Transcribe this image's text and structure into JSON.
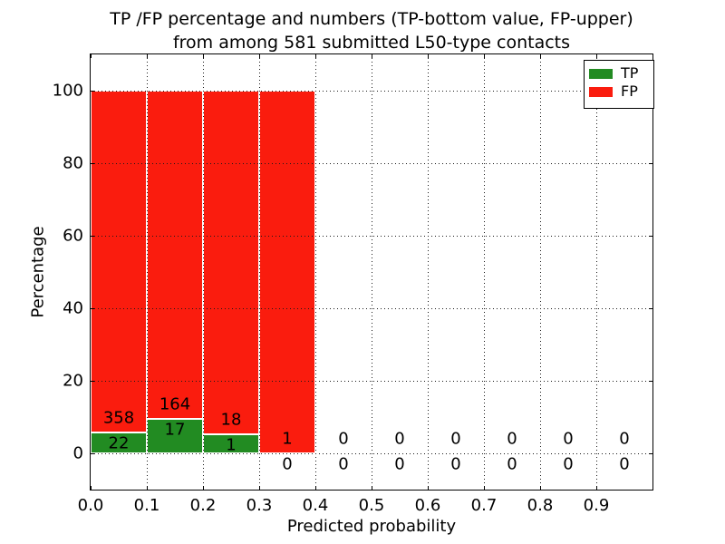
{
  "title": {
    "line1": "TP /FP percentage and numbers (TP-bottom value, FP-upper)",
    "line2": "from among 581 submitted L50-type contacts"
  },
  "chart_data": {
    "type": "bar",
    "stacked": true,
    "title": "TP /FP percentage and numbers (TP-bottom value, FP-upper) from among 581 submitted L50-type contacts",
    "xlabel": "Predicted probability",
    "ylabel": "Percentage",
    "xlim": [
      0.0,
      1.0
    ],
    "ylim": [
      -10,
      110
    ],
    "grid": "dotted",
    "xtick_values": [
      0.0,
      0.1,
      0.2,
      0.3,
      0.4,
      0.5,
      0.6,
      0.7,
      0.8,
      0.9
    ],
    "xtick_labels": [
      "0.0",
      "0.1",
      "0.2",
      "0.3",
      "0.4",
      "0.5",
      "0.6",
      "0.7",
      "0.8",
      "0.9"
    ],
    "ytick_values": [
      0,
      20,
      40,
      60,
      80,
      100
    ],
    "ytick_labels": [
      "0",
      "20",
      "40",
      "60",
      "80",
      "100"
    ],
    "legend": {
      "position": "upper-right",
      "entries": [
        {
          "label": "TP",
          "color": "#228b22"
        },
        {
          "label": "FP",
          "color": "#fa1c0e"
        }
      ]
    },
    "bins": [
      {
        "range": [
          0.0,
          0.1
        ],
        "tp": 22,
        "fp": 358
      },
      {
        "range": [
          0.1,
          0.2
        ],
        "tp": 17,
        "fp": 164
      },
      {
        "range": [
          0.2,
          0.3
        ],
        "tp": 1,
        "fp": 18
      },
      {
        "range": [
          0.3,
          0.4
        ],
        "tp": 0,
        "fp": 1
      },
      {
        "range": [
          0.4,
          0.5
        ],
        "tp": 0,
        "fp": 0
      },
      {
        "range": [
          0.5,
          0.6
        ],
        "tp": 0,
        "fp": 0
      },
      {
        "range": [
          0.6,
          0.7
        ],
        "tp": 0,
        "fp": 0
      },
      {
        "range": [
          0.7,
          0.8
        ],
        "tp": 0,
        "fp": 0
      },
      {
        "range": [
          0.8,
          0.9
        ],
        "tp": 0,
        "fp": 0
      },
      {
        "range": [
          0.9,
          1.0
        ],
        "tp": 0,
        "fp": 0
      }
    ]
  }
}
